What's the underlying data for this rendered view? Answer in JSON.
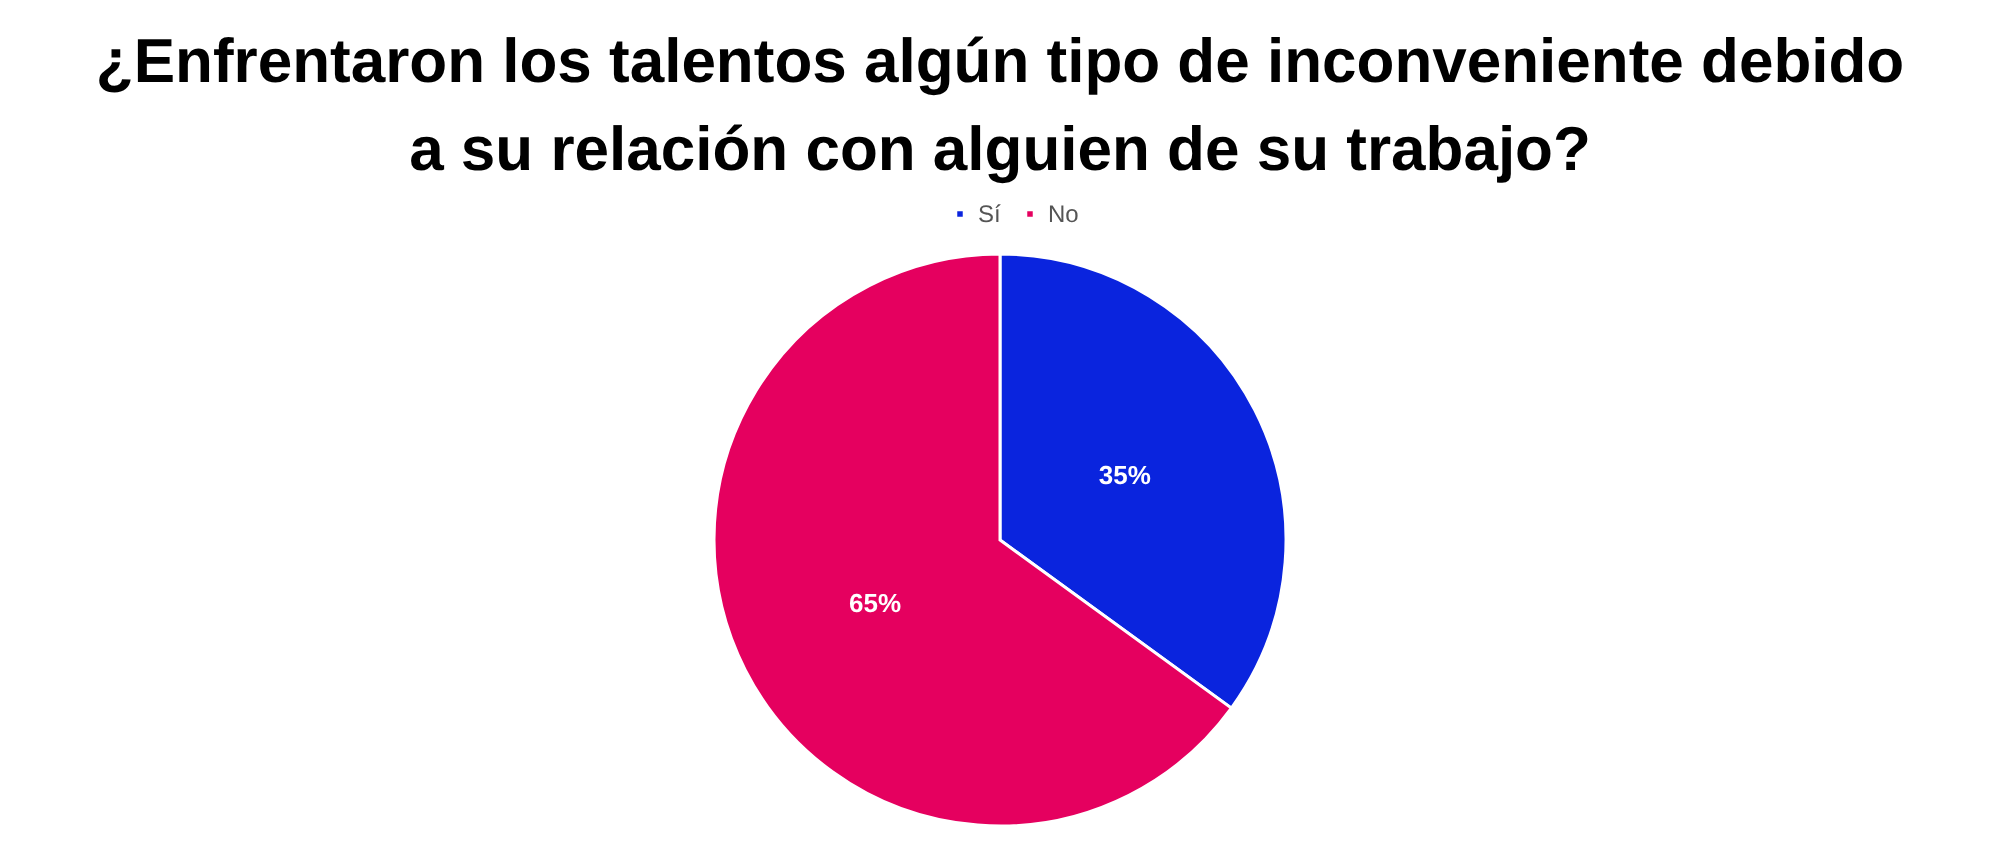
{
  "chart_data": {
    "type": "pie",
    "title": "¿Enfrentaron los talentos algún tipo de inconveniente debido a su relación con alguien de su trabajo?",
    "categories": [
      "Sí",
      "No"
    ],
    "values": [
      35,
      65
    ],
    "colors": [
      "#0a24de",
      "#e5005f"
    ],
    "value_labels": [
      "35%",
      "65%"
    ],
    "legend": "top"
  }
}
